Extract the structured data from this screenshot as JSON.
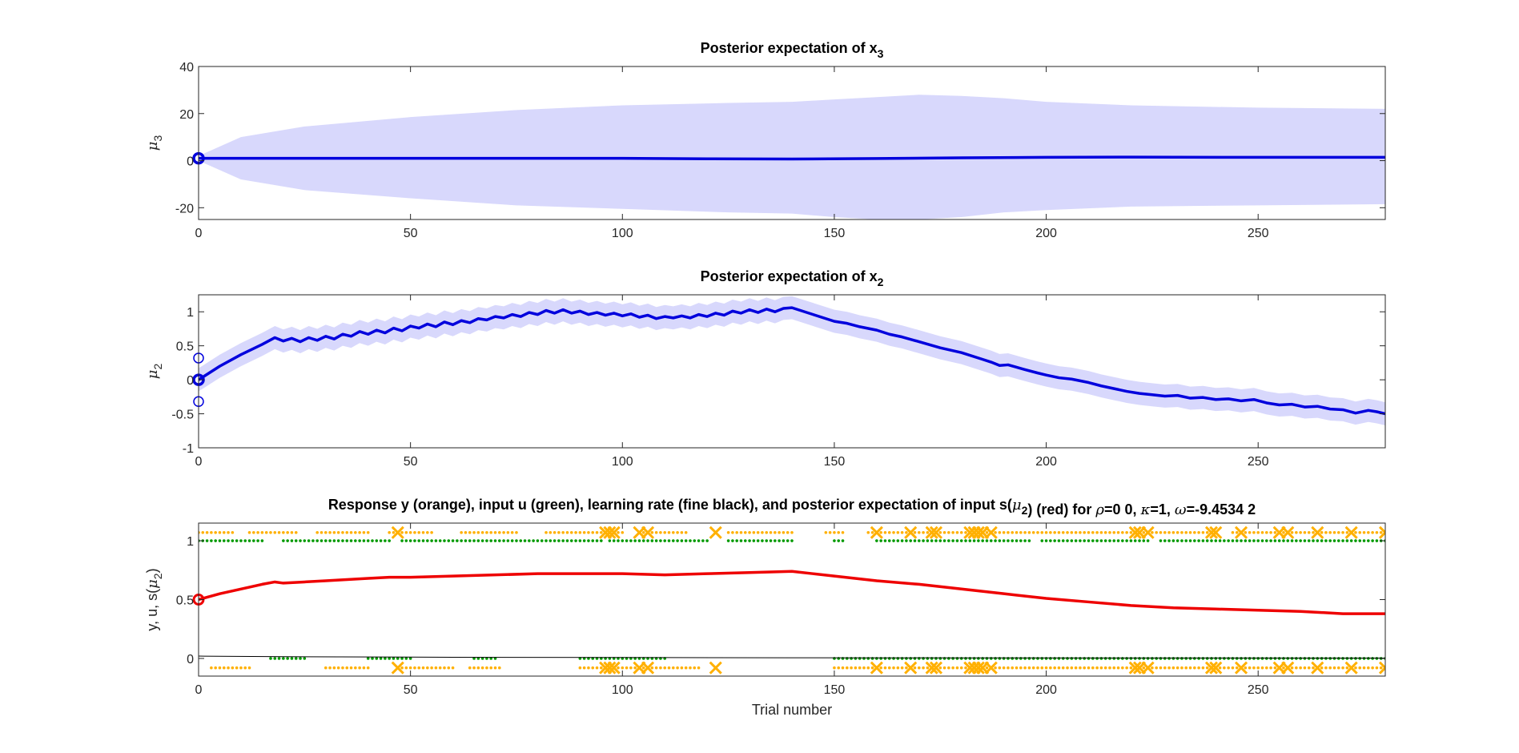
{
  "chart_data": [
    {
      "type": "line",
      "title": {
        "main": "Posterior expectation of x",
        "sub": "3"
      },
      "ylabel": {
        "sym": "μ",
        "sub": "3"
      },
      "xlabel": "",
      "xlim": [
        0,
        280
      ],
      "ylim": [
        -25,
        40
      ],
      "xticks": [
        0,
        50,
        100,
        150,
        200,
        250
      ],
      "yticks": [
        -20,
        0,
        20,
        40
      ],
      "colors": {
        "line": "#0000dd",
        "band": "#d8d8fc"
      },
      "mean": {
        "x": [
          0,
          20,
          50,
          80,
          100,
          120,
          140,
          160,
          180,
          200,
          220,
          250,
          280
        ],
        "y": [
          1,
          1,
          1,
          1,
          1,
          0.8,
          0.7,
          0.9,
          1.2,
          1.4,
          1.5,
          1.4,
          1.4
        ]
      },
      "band": {
        "x": [
          0,
          10,
          25,
          50,
          75,
          100,
          125,
          140,
          150,
          160,
          170,
          180,
          190,
          200,
          220,
          250,
          280
        ],
        "upper": [
          2,
          10,
          14.5,
          18.5,
          21.5,
          23.5,
          24.5,
          25,
          26,
          27,
          28,
          27.5,
          26.5,
          25,
          23.5,
          22.5,
          22
        ],
        "lower": [
          0,
          -8,
          -12.5,
          -16,
          -19,
          -20.5,
          -22,
          -22.5,
          -24,
          -25,
          -25,
          -24,
          -22,
          -21,
          -19.5,
          -19,
          -18.5
        ]
      },
      "initial_markers": [
        {
          "x": 0,
          "y": 1
        }
      ]
    },
    {
      "type": "line",
      "title": {
        "main": "Posterior expectation of x",
        "sub": "2"
      },
      "ylabel": {
        "sym": "μ",
        "sub": "2"
      },
      "xlabel": "",
      "xlim": [
        0,
        280
      ],
      "ylim": [
        -1,
        1.25
      ],
      "xticks": [
        0,
        50,
        100,
        150,
        200,
        250
      ],
      "yticks": [
        -1,
        -0.5,
        0,
        0.5,
        1
      ],
      "ytick_labels": [
        "-1",
        "-0.5",
        "0",
        "0.5",
        "1"
      ],
      "colors": {
        "line": "#0000dd",
        "band": "#d8d8fc"
      },
      "band_halfwidth": 0.17,
      "mean": {
        "x": [
          0,
          5,
          10,
          15,
          18,
          20,
          22,
          24,
          26,
          28,
          30,
          32,
          34,
          36,
          38,
          40,
          42,
          44,
          46,
          48,
          50,
          52,
          54,
          56,
          58,
          60,
          62,
          64,
          66,
          68,
          70,
          72,
          74,
          76,
          78,
          80,
          82,
          84,
          86,
          88,
          90,
          92,
          94,
          96,
          98,
          100,
          102,
          104,
          106,
          108,
          110,
          112,
          114,
          116,
          118,
          120,
          122,
          124,
          126,
          128,
          130,
          132,
          134,
          136,
          138,
          140,
          145,
          150,
          153,
          156,
          160,
          163,
          166,
          170,
          175,
          180,
          185,
          187,
          189,
          191,
          195,
          198,
          200,
          203,
          206,
          210,
          213,
          216,
          219,
          222,
          225,
          228,
          231,
          234,
          237,
          240,
          243,
          246,
          249,
          252,
          255,
          258,
          261,
          264,
          267,
          270,
          273,
          276,
          278,
          280
        ],
        "y": [
          0,
          0.2,
          0.37,
          0.52,
          0.62,
          0.57,
          0.61,
          0.56,
          0.62,
          0.58,
          0.64,
          0.6,
          0.67,
          0.64,
          0.71,
          0.67,
          0.73,
          0.69,
          0.76,
          0.72,
          0.79,
          0.76,
          0.82,
          0.78,
          0.85,
          0.81,
          0.87,
          0.84,
          0.9,
          0.88,
          0.93,
          0.91,
          0.96,
          0.93,
          0.99,
          0.96,
          1.02,
          0.98,
          1.03,
          0.98,
          1.01,
          0.96,
          0.99,
          0.95,
          0.98,
          0.94,
          0.97,
          0.92,
          0.95,
          0.9,
          0.93,
          0.91,
          0.94,
          0.91,
          0.96,
          0.93,
          0.98,
          0.95,
          1.01,
          0.98,
          1.03,
          0.99,
          1.04,
          1.0,
          1.05,
          1.06,
          0.96,
          0.86,
          0.83,
          0.78,
          0.73,
          0.67,
          0.63,
          0.56,
          0.47,
          0.4,
          0.3,
          0.26,
          0.21,
          0.22,
          0.15,
          0.1,
          0.07,
          0.03,
          0.01,
          -0.04,
          -0.09,
          -0.13,
          -0.17,
          -0.2,
          -0.22,
          -0.24,
          -0.23,
          -0.27,
          -0.26,
          -0.29,
          -0.28,
          -0.31,
          -0.29,
          -0.34,
          -0.37,
          -0.36,
          -0.4,
          -0.39,
          -0.43,
          -0.44,
          -0.49,
          -0.45,
          -0.47,
          -0.5
        ]
      },
      "initial_markers": [
        {
          "x": 0,
          "y": 0,
          "bold": true
        },
        {
          "x": 0,
          "y": 0.32
        },
        {
          "x": 0,
          "y": -0.32
        }
      ]
    },
    {
      "type": "scatter",
      "title": {
        "parts": [
          {
            "t": "Response y (orange), input u (green), learning rate (fine black), and posterior expectation of input s("
          },
          {
            "t": "μ",
            "greek": true
          },
          {
            "t": "2",
            "sub": true
          },
          {
            "t": ") (red) for "
          },
          {
            "t": "ρ",
            "greek": true
          },
          {
            "t": "=0  0, "
          },
          {
            "t": "κ",
            "greek": true
          },
          {
            "t": "=1, "
          },
          {
            "t": "ω",
            "greek": true
          },
          {
            "t": "=-9.4534           2"
          }
        ]
      },
      "ylabel": {
        "pre": "y, u, s(",
        "sym": "μ",
        "sub": "2",
        "post": ")"
      },
      "xlabel": "Trial number",
      "xlim": [
        0,
        280
      ],
      "ylim": [
        -0.15,
        1.15
      ],
      "xticks": [
        0,
        50,
        100,
        150,
        200,
        250
      ],
      "yticks": [
        0,
        0.5,
        1
      ],
      "ytick_labels": [
        "0",
        "0.5",
        "1"
      ],
      "colors": {
        "response": "#ffb000",
        "input": "#009900",
        "posterior": "#ee0000",
        "learning_rate": "#000000"
      },
      "posterior": {
        "x": [
          0,
          5,
          10,
          15,
          18,
          20,
          25,
          30,
          35,
          40,
          45,
          50,
          60,
          70,
          80,
          90,
          100,
          110,
          120,
          130,
          140,
          145,
          150,
          160,
          170,
          180,
          190,
          200,
          210,
          220,
          230,
          240,
          250,
          260,
          270,
          280
        ],
        "y": [
          0.5,
          0.55,
          0.59,
          0.63,
          0.65,
          0.64,
          0.65,
          0.66,
          0.67,
          0.68,
          0.69,
          0.69,
          0.7,
          0.71,
          0.72,
          0.72,
          0.72,
          0.71,
          0.72,
          0.73,
          0.74,
          0.72,
          0.7,
          0.66,
          0.63,
          0.59,
          0.55,
          0.51,
          0.48,
          0.45,
          0.43,
          0.42,
          0.41,
          0.4,
          0.38,
          0.38
        ]
      },
      "learning_rate": {
        "x": [
          0,
          20,
          60,
          100,
          140,
          180,
          220,
          280
        ],
        "y": [
          0.02,
          0.015,
          0.01,
          0.008,
          0.006,
          0.005,
          0.004,
          0.003
        ]
      },
      "initial_marker": {
        "x": 0,
        "y": 0.5
      },
      "input_u": {
        "ones_ranges": [
          [
            0,
            15
          ],
          [
            20,
            45
          ],
          [
            48,
            95
          ],
          [
            97,
            120
          ],
          [
            125,
            140
          ],
          [
            150,
            152
          ],
          [
            160,
            196
          ],
          [
            199,
            224
          ],
          [
            227,
            280
          ]
        ],
        "zeros_ranges": [
          [
            17,
            25
          ],
          [
            40,
            50
          ],
          [
            65,
            70
          ],
          [
            90,
            110
          ],
          [
            150,
            280
          ]
        ]
      },
      "response_y": {
        "ones_ranges": [
          [
            0,
            8
          ],
          [
            12,
            23
          ],
          [
            28,
            40
          ],
          [
            45,
            55
          ],
          [
            62,
            75
          ],
          [
            82,
            100
          ],
          [
            105,
            115
          ],
          [
            125,
            140
          ],
          [
            148,
            152
          ],
          [
            158,
            240
          ],
          [
            244,
            280
          ]
        ],
        "zeros_ranges": [
          [
            3,
            12
          ],
          [
            30,
            40
          ],
          [
            47,
            60
          ],
          [
            64,
            71
          ],
          [
            90,
            118
          ],
          [
            150,
            280
          ]
        ],
        "x_ones": [
          47,
          96,
          97,
          98,
          104,
          106,
          122,
          160,
          168,
          173,
          174,
          182,
          183,
          184,
          185,
          187,
          221,
          222,
          224,
          239,
          240,
          246,
          255,
          257,
          264,
          272,
          280
        ],
        "x_zeros": [
          47,
          96,
          97,
          98,
          104,
          106,
          122,
          160,
          168,
          173,
          174,
          182,
          183,
          184,
          185,
          187,
          221,
          222,
          224,
          239,
          240,
          246,
          255,
          257,
          264,
          272,
          280
        ]
      }
    }
  ]
}
